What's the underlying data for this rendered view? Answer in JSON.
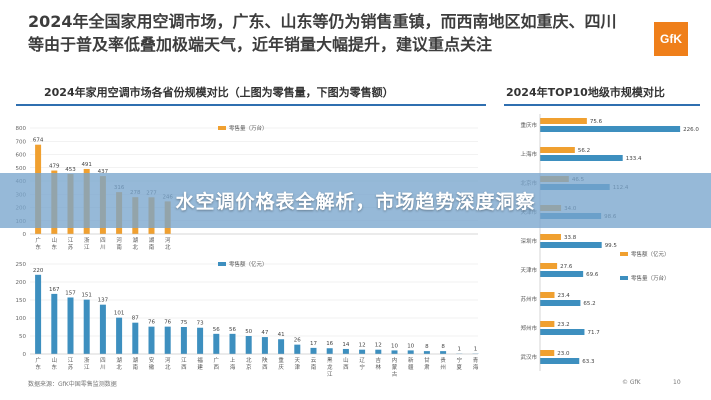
{
  "headline": "2024年全国家用空调市场，广东、山东等仍为销售重镇，而西南地区如重庆、四川等由于普及率低叠加极端天气，近年销量大幅提升，建议重点关注",
  "logo_text": "GfK",
  "overlay_title": "水空调价格表全解析，市场趋势深度洞察",
  "footer": {
    "source": "数据来源：GfK中国零售监测数据",
    "brand": "© GfK",
    "page": "10"
  },
  "colors": {
    "orange": "#f0a030",
    "blue": "#3d8fbf",
    "rule": "#2f6fb0"
  },
  "chart_data": [
    {
      "type": "bar",
      "title": "2024年家用空调市场各省份规模对比（上图为零售量，下图为零售额）",
      "legend": "零售量（万台）",
      "legend_position": "top-left",
      "ylim": [
        0,
        800
      ],
      "yticks": [
        0,
        100,
        200,
        300,
        400,
        500,
        600,
        700,
        800
      ],
      "categories": [
        "广东",
        "山东",
        "江苏",
        "浙江",
        "四川",
        "河南",
        "湖北",
        "湖南",
        "河北"
      ],
      "values": [
        674,
        479,
        453,
        491,
        437,
        316,
        278,
        277,
        246
      ]
    },
    {
      "type": "bar",
      "legend": "零售额（亿元）",
      "legend_position": "top-left",
      "ylim": [
        0,
        250
      ],
      "yticks": [
        0,
        50,
        100,
        150,
        200,
        250
      ],
      "categories": [
        "广东",
        "山东",
        "江苏",
        "浙江",
        "四川",
        "湖北",
        "湖南",
        "安徽",
        "河北",
        "江西",
        "福建",
        "广西",
        "上海",
        "北京",
        "陕西",
        "重庆",
        "天津",
        "云南",
        "黑龙江",
        "山西",
        "辽宁",
        "吉林",
        "内蒙古",
        "新疆",
        "甘肃",
        "贵州",
        "宁夏",
        "青海"
      ],
      "values": [
        220,
        167,
        157,
        151,
        137,
        101,
        87,
        76,
        76,
        75,
        73,
        56,
        56,
        50,
        47,
        41,
        26,
        17,
        16,
        14,
        12,
        12,
        10,
        10,
        8,
        8,
        1,
        1
      ]
    },
    {
      "type": "bar",
      "orientation": "horizontal",
      "title": "2024年TOP10地级市规模对比",
      "legend_position": "right",
      "categories": [
        "重庆市",
        "上海市",
        "北京市",
        "天津市",
        "深圳市",
        "天津市",
        "苏州市",
        "郑州市",
        "武汉市"
      ],
      "series": [
        {
          "name": "零售额（亿元）",
          "values": [
            75.6,
            56.2,
            46.5,
            34.0,
            33.8,
            27.6,
            23.4,
            23.2,
            23.0
          ]
        },
        {
          "name": "零售量（万台）",
          "values": [
            226.0,
            133.4,
            112.4,
            98.6,
            99.5,
            69.6,
            65.2,
            71.7,
            63.3
          ]
        }
      ]
    }
  ]
}
